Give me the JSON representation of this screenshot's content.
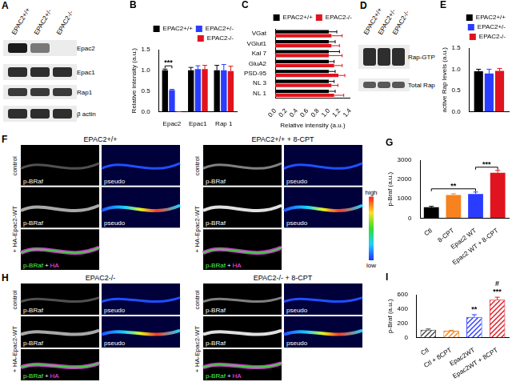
{
  "chart_data": [
    {
      "panel": "B",
      "type": "bar",
      "categories": [
        "Epac2",
        "Epac1",
        "Rap 1"
      ],
      "series": [
        {
          "name": "EPAC2+/+",
          "color": "#000000",
          "values": [
            1.0,
            1.0,
            1.0
          ],
          "errors": [
            0.03,
            0.07,
            0.12
          ]
        },
        {
          "name": "EPAC2+/-",
          "color": "#2a3cff",
          "values": [
            0.52,
            1.03,
            1.0
          ],
          "errors": [
            0.02,
            0.08,
            0.14
          ]
        },
        {
          "name": "EPAC2-/-",
          "color": "#e0141e",
          "values": [
            0,
            1.03,
            0.98
          ],
          "errors": [
            0,
            0.09,
            0.12
          ]
        }
      ],
      "y_label": "Relative intensity (a.u.)",
      "ylim": [
        0,
        1.5
      ],
      "yticks": [
        {
          "value": 0,
          "label": "0.0"
        },
        0.5,
        {
          "value": 1,
          "label": "1.0"
        },
        1.5
      ],
      "grid": false,
      "legend": "top",
      "annotations": [
        {
          "text": "***",
          "from": "Epac2",
          "series": [
            "EPAC2+/+",
            "EPAC2+/-"
          ]
        }
      ]
    },
    {
      "panel": "C",
      "type": "bar",
      "orientation": "horizontal",
      "categories": [
        "VGat",
        "VGlut1",
        "Kal 7",
        "GluA2",
        "PSD-95",
        "NL 3",
        "NL 1"
      ],
      "series": [
        {
          "name": "EPAC2+/+",
          "color": "#000000",
          "values": [
            1.0,
            1.0,
            1.0,
            1.0,
            1.0,
            1.0,
            1.0
          ],
          "errors": [
            0.15,
            0.12,
            0.2,
            0.1,
            0.12,
            0.1,
            0.12
          ]
        },
        {
          "name": "EPAC2-/-",
          "color": "#e0141e",
          "values": [
            1.05,
            1.05,
            1.0,
            1.1,
            1.18,
            1.05,
            1.1
          ],
          "errors": [
            0.2,
            0.15,
            0.25,
            0.15,
            0.12,
            0.12,
            0.18
          ]
        }
      ],
      "x_label": "Relative intensity (a.u.)",
      "xlim": [
        0,
        1.4
      ],
      "xticks": [
        {
          "value": 0,
          "label": "0.0"
        },
        0.2,
        0.4,
        0.6,
        0.8,
        {
          "value": 1,
          "label": "1.0"
        },
        1.2,
        1.4
      ],
      "grid": false,
      "legend": "top"
    },
    {
      "panel": "E",
      "type": "bar",
      "categories": [
        null
      ],
      "series": [
        {
          "name": "EPAC2+/+",
          "color": "#000000",
          "values": [
            0.95
          ],
          "errors": [
            0.05
          ]
        },
        {
          "name": "EPAC2+/-",
          "color": "#2a3cff",
          "values": [
            0.9
          ],
          "errors": [
            0.1
          ]
        },
        {
          "name": "EPAC2-/-",
          "color": "#e0141e",
          "values": [
            0.96
          ],
          "errors": [
            0.06
          ]
        }
      ],
      "y_label": "active Rap levels (a.u.)",
      "ylim": [
        0,
        1.5
      ],
      "yticks": [
        {
          "value": 0,
          "label": "0.0"
        },
        0.5,
        {
          "value": 1,
          "label": "1.0"
        },
        1.5
      ],
      "grid": false,
      "legend": "top"
    },
    {
      "panel": "G",
      "type": "bar",
      "categories": [
        "Ctl",
        "8-CPT",
        "Epac2 WT",
        "Epac2 WT + 8-CPT"
      ],
      "values": [
        560,
        1200,
        1250,
        2350
      ],
      "errors": [
        50,
        60,
        100,
        120
      ],
      "colors": [
        "#000000",
        "#f7821e",
        "#2a3cff",
        "#e0141e"
      ],
      "y_label": "p-Braf (a.u.)",
      "ylim": [
        0,
        3000
      ],
      "yticks": [
        0,
        1000,
        2000,
        3000
      ],
      "grid": false,
      "annotations": [
        {
          "text": "**",
          "from": "Ctl",
          "to": "Epac2 WT"
        },
        {
          "text": "***",
          "from": "Epac2 WT",
          "to": "Epac2 WT + 8-CPT"
        }
      ]
    },
    {
      "panel": "I",
      "type": "bar",
      "categories": [
        "Ctl",
        "Ctl + 8CPT",
        "Epac2WT",
        "Epac2WT + 8CPT"
      ],
      "values": [
        110,
        95,
        290,
        530
      ],
      "errors": [
        10,
        8,
        30,
        35
      ],
      "colors": [
        "#444444",
        "#f7821e",
        "#2a3cff",
        "#e0141e"
      ],
      "y_label": "p-Braf (a.u.)",
      "ylim": [
        0,
        600
      ],
      "yticks": [
        0,
        200,
        400,
        600
      ],
      "grid": false,
      "annotations": [
        {
          "text": "**",
          "from": "Epac2WT"
        },
        {
          "text": "***",
          "from": "Epac2WT + 8CPT"
        },
        {
          "text": "#",
          "from": "Epac2WT + 8CPT"
        }
      ]
    }
  ],
  "images": {
    "A": {
      "panel": "A",
      "lanes": [
        "EPAC2+/+",
        "EPAC2+/-",
        "EPAC2-/-"
      ],
      "rows": [
        "Epac2",
        "Epac1",
        "Rap1",
        "β actin"
      ]
    },
    "D": {
      "panel": "D",
      "lanes": [
        "EPAC2+/+",
        "EPAC2+/-",
        "EPAC2-/-"
      ],
      "rows": [
        "Rap-GTP",
        "Total Rap"
      ]
    },
    "F": {
      "panel": "F",
      "groups": [
        {
          "title": "EPAC2+/+",
          "rows": [
            "control",
            "+ HA-Epac2-WT"
          ]
        },
        {
          "title": "EPAC2+/+ + 8-CPT",
          "rows": [
            "control",
            "+ HA-Epac2-WT"
          ]
        }
      ],
      "channels": [
        "p-BRaf",
        "pseudo"
      ],
      "merge": [
        "p-BRaf",
        "+",
        "HA"
      ],
      "colorbar": [
        "high",
        "low"
      ]
    },
    "H": {
      "panel": "H",
      "groups": [
        {
          "title": "EPAC2-/-",
          "rows": [
            "control",
            "+ HA-Epac2-WT"
          ]
        },
        {
          "title": "EPAC2-/- + 8-CPT",
          "rows": [
            "control",
            "+ HA-Epac2-WT"
          ]
        }
      ],
      "channels": [
        "p-BRaf",
        "pseudo"
      ],
      "merge": [
        "p-BRaf",
        "+",
        "HA"
      ]
    }
  }
}
